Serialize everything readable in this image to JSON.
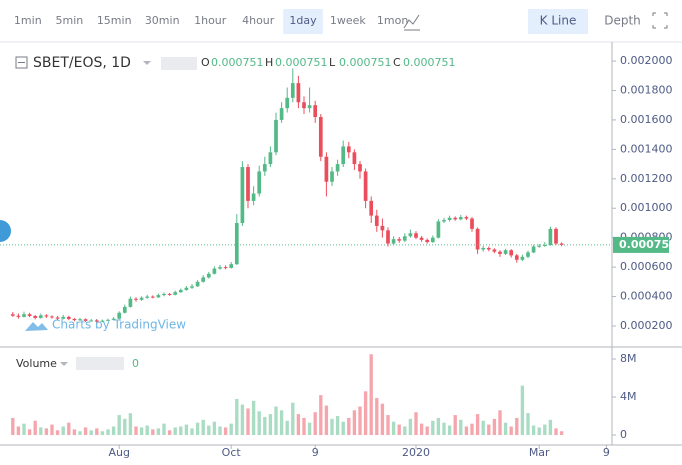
{
  "toolbar": {
    "intervals": [
      "1min",
      "5min",
      "15min",
      "30min",
      "1hour",
      "4hour",
      "1day",
      "1week",
      "1mon"
    ],
    "active_interval": 6,
    "views": [
      "K Line",
      "Depth"
    ],
    "active_view": 0
  },
  "chart_data": {
    "type": "candlestick",
    "symbol": "SBET/EOS, 1D",
    "legend": [
      {
        "label": "O",
        "value": 0.000751
      },
      {
        "label": "H",
        "value": 0.000751
      },
      {
        "label": "L",
        "value": 0.000751
      },
      {
        "label": "C",
        "value": 0.000751
      }
    ],
    "watermark": "Charts by TradingView",
    "up_color": "#53b987",
    "down_color": "#eb4d5c",
    "last_price": 0.000751,
    "categories": [
      null,
      null,
      null,
      null,
      null,
      null,
      null,
      null,
      null,
      null,
      null,
      null,
      null,
      null,
      null,
      null,
      null,
      null,
      null,
      "Aug",
      null,
      null,
      null,
      null,
      null,
      null,
      null,
      null,
      null,
      null,
      null,
      null,
      null,
      null,
      null,
      null,
      null,
      null,
      null,
      "Oct",
      null,
      null,
      null,
      null,
      null,
      null,
      null,
      null,
      null,
      null,
      null,
      null,
      null,
      null,
      "9",
      null,
      null,
      null,
      null,
      null,
      null,
      null,
      null,
      null,
      null,
      null,
      null,
      null,
      null,
      null,
      null,
      null,
      "2020",
      null,
      null,
      null,
      null,
      null,
      null,
      null,
      null,
      null,
      null,
      null,
      null,
      null,
      null,
      null,
      null,
      null,
      null,
      null,
      null,
      null,
      "Mar",
      null,
      null,
      null,
      null,
      null,
      null,
      null,
      null,
      null,
      null,
      null,
      "9"
    ],
    "open": [
      0.00028,
      0.00027,
      0.000262,
      0.00028,
      0.000268,
      0.000255,
      0.000272,
      0.000265,
      0.000258,
      0.00025,
      0.000262,
      0.000248,
      0.00024,
      0.000246,
      0.000235,
      0.000238,
      0.00023,
      0.000236,
      0.000242,
      0.00025,
      0.00029,
      0.00033,
      0.000385,
      0.000378,
      0.000392,
      0.0004,
      0.000395,
      0.00041,
      0.000418,
      0.000412,
      0.00043,
      0.000445,
      0.00046,
      0.00047,
      0.0005,
      0.00053,
      0.000555,
      0.00059,
      0.0006,
      0.000595,
      0.00062,
      0.0009,
      0.00128,
      0.00105,
      0.0011,
      0.00125,
      0.0013,
      0.00138,
      0.0016,
      0.00168,
      0.00175,
      0.00185,
      0.00172,
      0.00168,
      0.0017,
      0.00162,
      0.00135,
      0.00118,
      0.00125,
      0.0013,
      0.00142,
      0.00138,
      0.0013,
      0.00125,
      0.00105,
      0.00095,
      0.00088,
      0.00085,
      0.00076,
      0.00079,
      0.00078,
      0.00081,
      0.00083,
      0.0008,
      0.000785,
      0.00077,
      0.0008,
      0.00091,
      0.00092,
      0.000935,
      0.000925,
      0.00094,
      0.00093,
      0.00086,
      0.00072,
      0.00073,
      0.00072,
      0.000705,
      0.00069,
      0.000715,
      0.00068,
      0.00065,
      0.00067,
      0.0007,
      0.00074,
      0.000745,
      0.00075,
      0.00086,
      0.00076,
      null,
      null,
      null,
      null,
      null,
      null,
      null,
      null
    ],
    "high": [
      0.000295,
      0.000285,
      0.000298,
      0.00029,
      0.000275,
      0.000285,
      0.00028,
      0.000272,
      0.000268,
      0.000275,
      0.00027,
      0.000255,
      0.000255,
      0.000252,
      0.000248,
      0.000245,
      0.000244,
      0.00025,
      0.00026,
      0.0003,
      0.000345,
      0.0004,
      0.000395,
      0.000402,
      0.000412,
      0.000408,
      0.00042,
      0.000428,
      0.000425,
      0.00044,
      0.000455,
      0.000472,
      0.000485,
      0.000512,
      0.000545,
      0.000568,
      0.000605,
      0.000615,
      0.000612,
      0.000635,
      0.00096,
      0.00132,
      0.0013,
      0.00115,
      0.00129,
      0.00135,
      0.00142,
      0.00165,
      0.00172,
      0.00182,
      0.00195,
      0.0019,
      0.00176,
      0.00182,
      0.00173,
      0.00164,
      0.00138,
      0.00128,
      0.00133,
      0.00146,
      0.00145,
      0.0014,
      0.00132,
      0.00127,
      0.00108,
      0.00099,
      0.00093,
      0.00087,
      0.00081,
      0.000805,
      0.00083,
      0.000855,
      0.000845,
      0.000812,
      0.000795,
      0.000815,
      0.000925,
      0.000935,
      0.00095,
      0.000945,
      0.000955,
      0.00095,
      0.00094,
      0.00087,
      0.000745,
      0.00074,
      0.000728,
      0.000715,
      0.000725,
      0.000722,
      0.00069,
      0.000685,
      0.000712,
      0.000752,
      0.000758,
      0.00077,
      0.000875,
      0.00087,
      0.000768,
      null,
      null,
      null,
      null,
      null,
      null,
      null,
      null
    ],
    "low": [
      0.000262,
      0.00025,
      0.000258,
      0.00026,
      0.000245,
      0.00025,
      0.000255,
      0.00025,
      0.00024,
      0.000245,
      0.00024,
      0.000232,
      0.000235,
      0.000228,
      0.00023,
      0.000225,
      0.000226,
      0.000232,
      0.000238,
      0.000245,
      0.000285,
      0.000325,
      0.000365,
      0.00037,
      0.000385,
      0.000388,
      0.00039,
      0.000402,
      0.000405,
      0.000408,
      0.000425,
      0.00044,
      0.000452,
      0.000465,
      0.000495,
      0.000522,
      0.00055,
      0.000582,
      0.000585,
      0.00059,
      0.000615,
      0.00088,
      0.001,
      0.00102,
      0.00108,
      0.00122,
      0.00128,
      0.00136,
      0.00158,
      0.00165,
      0.00172,
      0.00168,
      0.00164,
      0.00165,
      0.00158,
      0.00132,
      0.00108,
      0.00115,
      0.00122,
      0.00128,
      0.00134,
      0.00126,
      0.0012,
      0.001,
      0.0009,
      0.00084,
      0.0008,
      0.00074,
      0.00075,
      0.000765,
      0.00077,
      0.0008,
      0.00079,
      0.000772,
      0.00076,
      0.000765,
      0.000795,
      0.0009,
      0.00091,
      0.000915,
      0.000918,
      0.00092,
      0.00084,
      0.00069,
      0.000705,
      0.000708,
      0.000695,
      0.00067,
      0.000682,
      0.000665,
      0.00063,
      0.00064,
      0.00066,
      0.000695,
      0.000732,
      0.000738,
      0.000745,
      0.00075,
      0.000742,
      null,
      null,
      null,
      null,
      null,
      null,
      null,
      null
    ],
    "close": [
      0.00027,
      0.000262,
      0.00028,
      0.000268,
      0.000255,
      0.000272,
      0.000265,
      0.000258,
      0.00025,
      0.000262,
      0.000248,
      0.00024,
      0.000246,
      0.000235,
      0.000238,
      0.00023,
      0.000236,
      0.000242,
      0.00025,
      0.00029,
      0.00033,
      0.000385,
      0.000378,
      0.000392,
      0.0004,
      0.000395,
      0.00041,
      0.000418,
      0.000412,
      0.00043,
      0.000445,
      0.00046,
      0.00047,
      0.0005,
      0.00053,
      0.000555,
      0.00059,
      0.0006,
      0.000595,
      0.00062,
      0.0009,
      0.00128,
      0.00105,
      0.0011,
      0.00125,
      0.0013,
      0.00138,
      0.0016,
      0.00168,
      0.00175,
      0.00185,
      0.00172,
      0.00168,
      0.0017,
      0.00162,
      0.00135,
      0.00118,
      0.00125,
      0.0013,
      0.00142,
      0.00138,
      0.0013,
      0.00125,
      0.00105,
      0.00095,
      0.00088,
      0.00085,
      0.00076,
      0.00079,
      0.00078,
      0.00081,
      0.00083,
      0.0008,
      0.000785,
      0.00077,
      0.0008,
      0.00091,
      0.00092,
      0.000935,
      0.000925,
      0.00094,
      0.00093,
      0.00086,
      0.00072,
      0.00073,
      0.00072,
      0.000705,
      0.00069,
      0.000715,
      0.00068,
      0.00065,
      0.00067,
      0.0007,
      0.00074,
      0.000745,
      0.00075,
      0.00086,
      0.00076,
      0.000751,
      null,
      null,
      null,
      null,
      null,
      null,
      null,
      null
    ],
    "volume_label": "Volume",
    "volume_legend_value": 0,
    "volume": [
      1800000,
      900000,
      1200000,
      600000,
      1500000,
      800000,
      700000,
      1100000,
      500000,
      900000,
      1300000,
      600000,
      400000,
      800000,
      500000,
      700000,
      400000,
      600000,
      900000,
      2100000,
      1700000,
      2300000,
      900000,
      800000,
      1000000,
      600000,
      700000,
      1200000,
      500000,
      800000,
      900000,
      1100000,
      700000,
      1300000,
      1600000,
      1000000,
      1400000,
      900000,
      800000,
      1200000,
      3800000,
      3200000,
      2800000,
      3600000,
      2500000,
      1900000,
      2200000,
      3000000,
      2600000,
      1500000,
      3400000,
      2200000,
      1800000,
      1300000,
      2400000,
      4200000,
      3100000,
      1700000,
      2000000,
      1400000,
      1800000,
      2600000,
      3000000,
      4600000,
      8500000,
      3900000,
      3300000,
      2100000,
      1400000,
      1100000,
      900000,
      1700000,
      2400000,
      1200000,
      900000,
      1500000,
      1800000,
      1300000,
      1000000,
      2100000,
      1600000,
      900000,
      1200000,
      2200000,
      1500000,
      1100000,
      1700000,
      2600000,
      1300000,
      900000,
      1800000,
      5200000,
      2300000,
      1000000,
      800000,
      1100000,
      1600000,
      700000,
      400000,
      null,
      null,
      null,
      null,
      null,
      null,
      null,
      null
    ],
    "ylim": [
      7.1e-05,
      0.002109
    ],
    "yticks": [
      {
        "value": 0.0002,
        "label": "0.000200"
      },
      {
        "value": 0.0004,
        "label": "0.000400"
      },
      {
        "value": 0.0006,
        "label": "0.000600"
      },
      {
        "value": 0.0008,
        "label": "0.000800"
      },
      {
        "value": 0.001,
        "label": "0.001000"
      },
      {
        "value": 0.0012,
        "label": "0.001200"
      },
      {
        "value": 0.0014,
        "label": "0.001400"
      },
      {
        "value": 0.0016,
        "label": "0.001600"
      },
      {
        "value": 0.0018,
        "label": "0.001800"
      },
      {
        "value": 0.002,
        "label": "0.002000"
      }
    ],
    "y2lim": [
      -1050000,
      9160000
    ],
    "y2ticks": [
      0,
      {
        "value": 4000000,
        "label": "4M"
      },
      {
        "value": 8000000,
        "label": "8M"
      }
    ]
  }
}
